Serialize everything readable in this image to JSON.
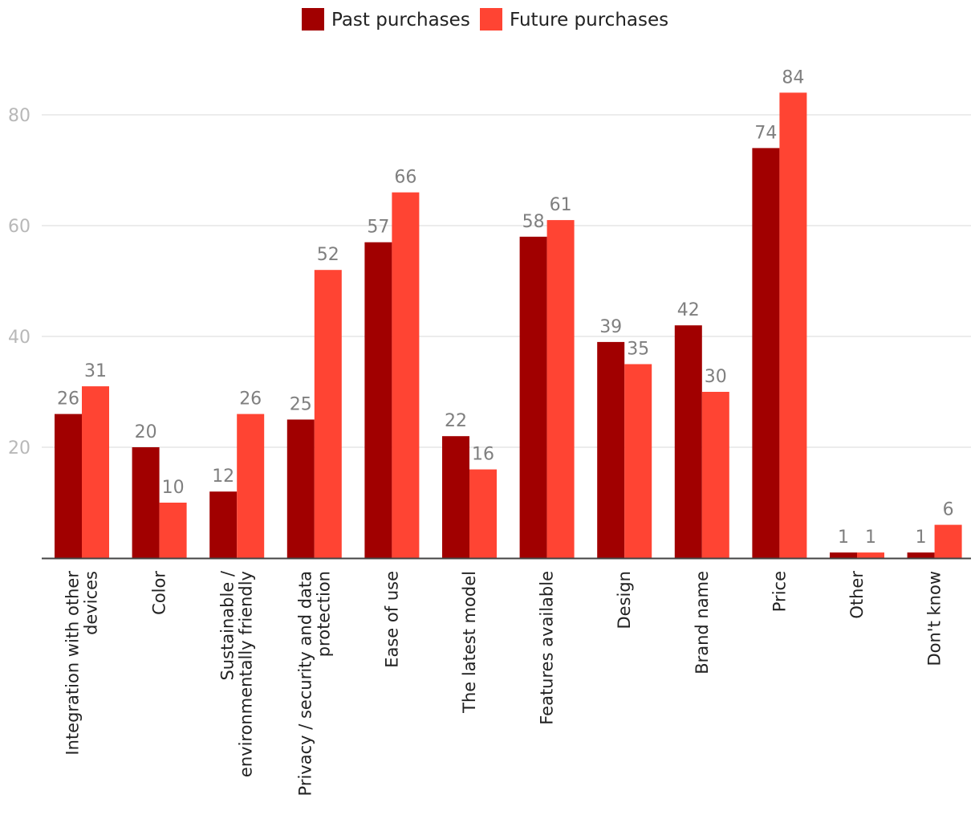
{
  "chart_data": {
    "type": "bar",
    "title": "",
    "xlabel": "",
    "ylabel": "",
    "categories": [
      "Integration with other devices",
      "Color",
      "Sustainable / environmentally friendly",
      "Privacy / security and data protection",
      "Ease of use",
      "The latest model",
      "Features available",
      "Design",
      "Brand name",
      "Price",
      "Other",
      "Don't know"
    ],
    "category_label_lines": [
      [
        "Integration with other",
        "devices"
      ],
      [
        "Color"
      ],
      [
        "Sustainable /",
        "environmentally friendly"
      ],
      [
        "Privacy / security and data",
        "protection"
      ],
      [
        "Ease of use"
      ],
      [
        "The latest model"
      ],
      [
        "Features available"
      ],
      [
        "Design"
      ],
      [
        "Brand name"
      ],
      [
        "Price"
      ],
      [
        "Other"
      ],
      [
        "Don't know"
      ]
    ],
    "series": [
      {
        "name": "Past purchases",
        "color": "#a10000",
        "values": [
          26,
          20,
          12,
          25,
          57,
          22,
          58,
          39,
          42,
          74,
          1,
          1
        ]
      },
      {
        "name": "Future purchases",
        "color": "#ff4433",
        "values": [
          31,
          10,
          26,
          52,
          66,
          16,
          61,
          35,
          30,
          84,
          1,
          6
        ]
      }
    ],
    "ylim": [
      0,
      90
    ],
    "yticks": [
      20,
      40,
      60,
      80
    ],
    "grid": true,
    "legend_position": "top-center",
    "colors": {
      "grid": "#e6e6e6",
      "axis": "#444444",
      "tick_label": "#b8b8b8",
      "value_label": "#7f7f7f",
      "category_label": "#222222"
    }
  }
}
